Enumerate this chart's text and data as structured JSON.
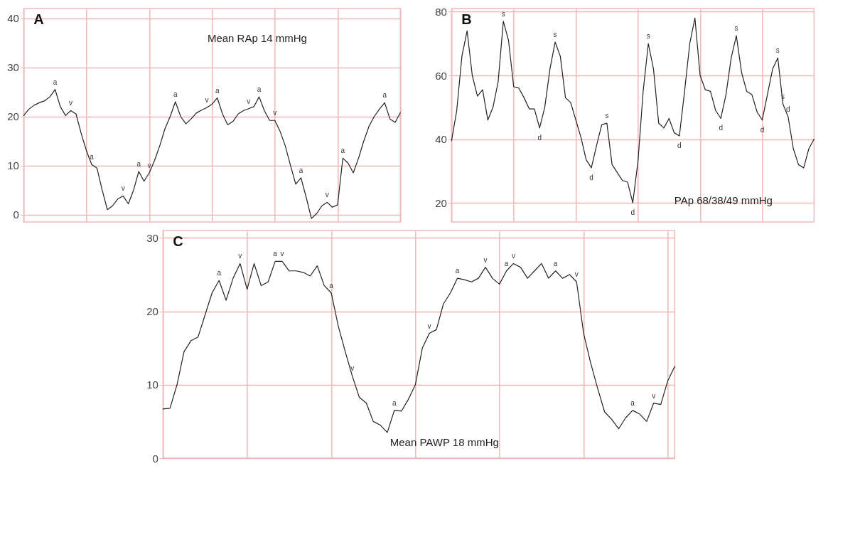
{
  "chart_data": [
    {
      "type": "line",
      "title": "A",
      "annotations": [
        "Mean RAp 14 mmHg"
      ],
      "ylim": [
        -1.5,
        42
      ],
      "yticks": [
        0,
        10,
        20,
        30,
        40
      ],
      "grid": true,
      "tick_labels": "y",
      "categories": [
        null,
        null,
        null,
        null,
        null,
        null,
        null,
        null,
        null,
        null,
        null,
        null,
        null,
        null,
        null,
        null,
        null,
        null,
        null,
        null,
        null,
        null,
        null,
        null,
        null,
        null,
        null,
        null,
        null,
        null,
        null,
        null,
        null,
        null,
        null,
        null,
        null,
        null,
        null,
        null,
        null,
        null,
        null,
        null,
        null,
        null,
        null,
        null,
        null,
        null,
        null,
        null,
        null,
        null,
        null,
        null,
        null,
        null,
        null,
        null,
        null,
        null,
        null,
        null,
        null,
        null,
        null,
        null,
        null,
        null,
        null,
        null,
        null
      ],
      "series": [
        {
          "color": "#222222",
          "values": [
            20.2,
            21.5,
            22.3,
            22.8,
            23.2,
            24,
            25.5,
            22,
            20.2,
            21.2,
            20.5,
            16.5,
            13,
            10.2,
            9.5,
            5,
            1,
            1.8,
            3.2,
            3.8,
            2.2,
            5,
            8.8,
            6.8,
            8.5,
            11,
            14,
            17.5,
            20,
            23,
            20,
            18.5,
            19.5,
            20.7,
            21.3,
            21.8,
            22.5,
            23.8,
            20.5,
            18.3,
            19,
            20.5,
            21.2,
            21.6,
            22,
            24,
            21.2,
            19.2,
            19.2,
            17,
            14,
            10,
            6.2,
            7.5,
            3.5,
            -0.8,
            0.2,
            1.8,
            2.5,
            1.5,
            2,
            11.5,
            10.5,
            8.5,
            11.5,
            15,
            18,
            20,
            21.5,
            22.8,
            19.5,
            18.8,
            20.8
          ],
          "value_labels": [
            null,
            null,
            null,
            null,
            null,
            null,
            "a",
            null,
            null,
            "v",
            null,
            null,
            null,
            "a",
            null,
            null,
            null,
            null,
            null,
            "v",
            null,
            null,
            "a",
            null,
            "v",
            null,
            null,
            null,
            null,
            "a",
            null,
            null,
            null,
            null,
            null,
            "v",
            null,
            "a",
            null,
            null,
            null,
            null,
            null,
            "v",
            null,
            "a",
            null,
            null,
            "v",
            null,
            null,
            null,
            null,
            "a",
            null,
            null,
            null,
            null,
            "v",
            null,
            null,
            "a",
            null,
            null,
            null,
            null,
            null,
            null,
            null,
            "a",
            null,
            null,
            null
          ]
        }
      ]
    },
    {
      "type": "line",
      "title": "B",
      "annotations": [
        "PAp  68/38/49 mmHg"
      ],
      "ylim": [
        14,
        81
      ],
      "yticks": [
        20,
        40,
        60,
        80
      ],
      "grid": true,
      "tick_labels": "y",
      "categories": [
        null,
        null,
        null,
        null,
        null,
        null,
        null,
        null,
        null,
        null,
        null,
        null,
        null,
        null,
        null,
        null,
        null,
        null,
        null,
        null,
        null,
        null,
        null,
        null,
        null,
        null,
        null,
        null,
        null,
        null,
        null,
        null,
        null,
        null,
        null,
        null,
        null,
        null,
        null,
        null,
        null,
        null,
        null,
        null,
        null,
        null,
        null,
        null,
        null,
        null,
        null,
        null,
        null,
        null,
        null,
        null,
        null,
        null,
        null,
        null,
        null,
        null,
        null,
        null,
        null,
        null,
        null,
        null,
        null,
        null,
        null
      ],
      "series": [
        {
          "color": "#222222",
          "values": [
            39.5,
            49,
            66,
            74,
            60,
            53.5,
            55.5,
            46,
            50,
            58,
            77,
            71,
            56.5,
            56,
            53,
            49.5,
            49.5,
            43.5,
            50,
            62,
            70.5,
            66,
            53,
            51.5,
            46,
            40.5,
            33.5,
            31,
            38,
            44.5,
            45,
            32,
            29.5,
            27,
            26.5,
            20,
            33,
            55,
            70,
            62,
            45,
            43.5,
            46.5,
            42,
            41,
            55,
            70,
            78,
            60,
            55.5,
            55,
            49,
            46.5,
            54,
            65.5,
            72.5,
            61,
            55,
            54,
            48.5,
            46,
            54,
            62,
            65.5,
            51,
            47,
            37,
            32,
            31,
            37,
            40
          ],
          "value_labels": [
            null,
            null,
            null,
            null,
            null,
            null,
            null,
            null,
            null,
            null,
            "s",
            null,
            null,
            null,
            null,
            null,
            null,
            "d",
            null,
            null,
            "s",
            null,
            null,
            null,
            null,
            null,
            null,
            "d",
            null,
            null,
            "s",
            null,
            null,
            null,
            null,
            "d",
            null,
            null,
            "s",
            null,
            null,
            null,
            null,
            null,
            "d",
            null,
            null,
            null,
            null,
            null,
            null,
            null,
            "d",
            null,
            null,
            "s",
            null,
            null,
            null,
            null,
            "d",
            null,
            null,
            "s",
            "s",
            "d",
            null,
            null,
            null,
            null,
            null
          ]
        }
      ]
    },
    {
      "type": "line",
      "title": "C",
      "annotations": [
        "Mean PAWP 18 mmHg"
      ],
      "ylim": [
        0,
        31
      ],
      "yticks": [
        0,
        10,
        20,
        30
      ],
      "grid": true,
      "tick_labels": "y",
      "categories": [
        null,
        null,
        null,
        null,
        null,
        null,
        null,
        null,
        null,
        null,
        null,
        null,
        null,
        null,
        null,
        null,
        null,
        null,
        null,
        null,
        null,
        null,
        null,
        null,
        null,
        null,
        null,
        null,
        null,
        null,
        null,
        null,
        null,
        null,
        null,
        null,
        null,
        null,
        null,
        null,
        null,
        null,
        null,
        null,
        null,
        null,
        null,
        null,
        null,
        null,
        null,
        null,
        null,
        null,
        null,
        null,
        null,
        null,
        null,
        null,
        null,
        null,
        null,
        null,
        null,
        null,
        null,
        null,
        null,
        null,
        null,
        null,
        null,
        null
      ],
      "series": [
        {
          "color": "#222222",
          "values": [
            6.7,
            6.8,
            10,
            14.5,
            16,
            16.5,
            19.5,
            22.5,
            24.2,
            21.5,
            24.5,
            26.5,
            23,
            26.5,
            23.5,
            24,
            26.8,
            26.8,
            25.5,
            25.5,
            25.3,
            24.8,
            26.2,
            23.5,
            22.5,
            18,
            14.5,
            11.2,
            8.3,
            7.5,
            5,
            4.5,
            3.5,
            6.5,
            6.4,
            8,
            10,
            15,
            17,
            17.5,
            21,
            22.5,
            24.5,
            24.3,
            24,
            24.5,
            26,
            24.5,
            23.7,
            25.5,
            26.5,
            26,
            24.5,
            25.5,
            26.5,
            24.5,
            25.5,
            24.5,
            25,
            24,
            17,
            13,
            9.5,
            6.3,
            5.3,
            4,
            5.5,
            6.5,
            6,
            5,
            7.5,
            7.3,
            10.5,
            12.5
          ],
          "value_labels": [
            null,
            null,
            null,
            null,
            null,
            null,
            null,
            null,
            "a",
            null,
            null,
            "v",
            null,
            null,
            null,
            null,
            "a",
            "v",
            null,
            null,
            null,
            null,
            null,
            null,
            "a",
            null,
            null,
            "v",
            null,
            null,
            null,
            null,
            null,
            "a",
            null,
            null,
            null,
            null,
            "v",
            null,
            null,
            null,
            "a",
            null,
            null,
            null,
            "v",
            null,
            null,
            "a",
            "v",
            null,
            null,
            null,
            null,
            null,
            "a",
            null,
            null,
            "v",
            null,
            null,
            null,
            null,
            null,
            null,
            null,
            "a",
            null,
            null,
            "v",
            null,
            null,
            null
          ]
        }
      ]
    }
  ]
}
